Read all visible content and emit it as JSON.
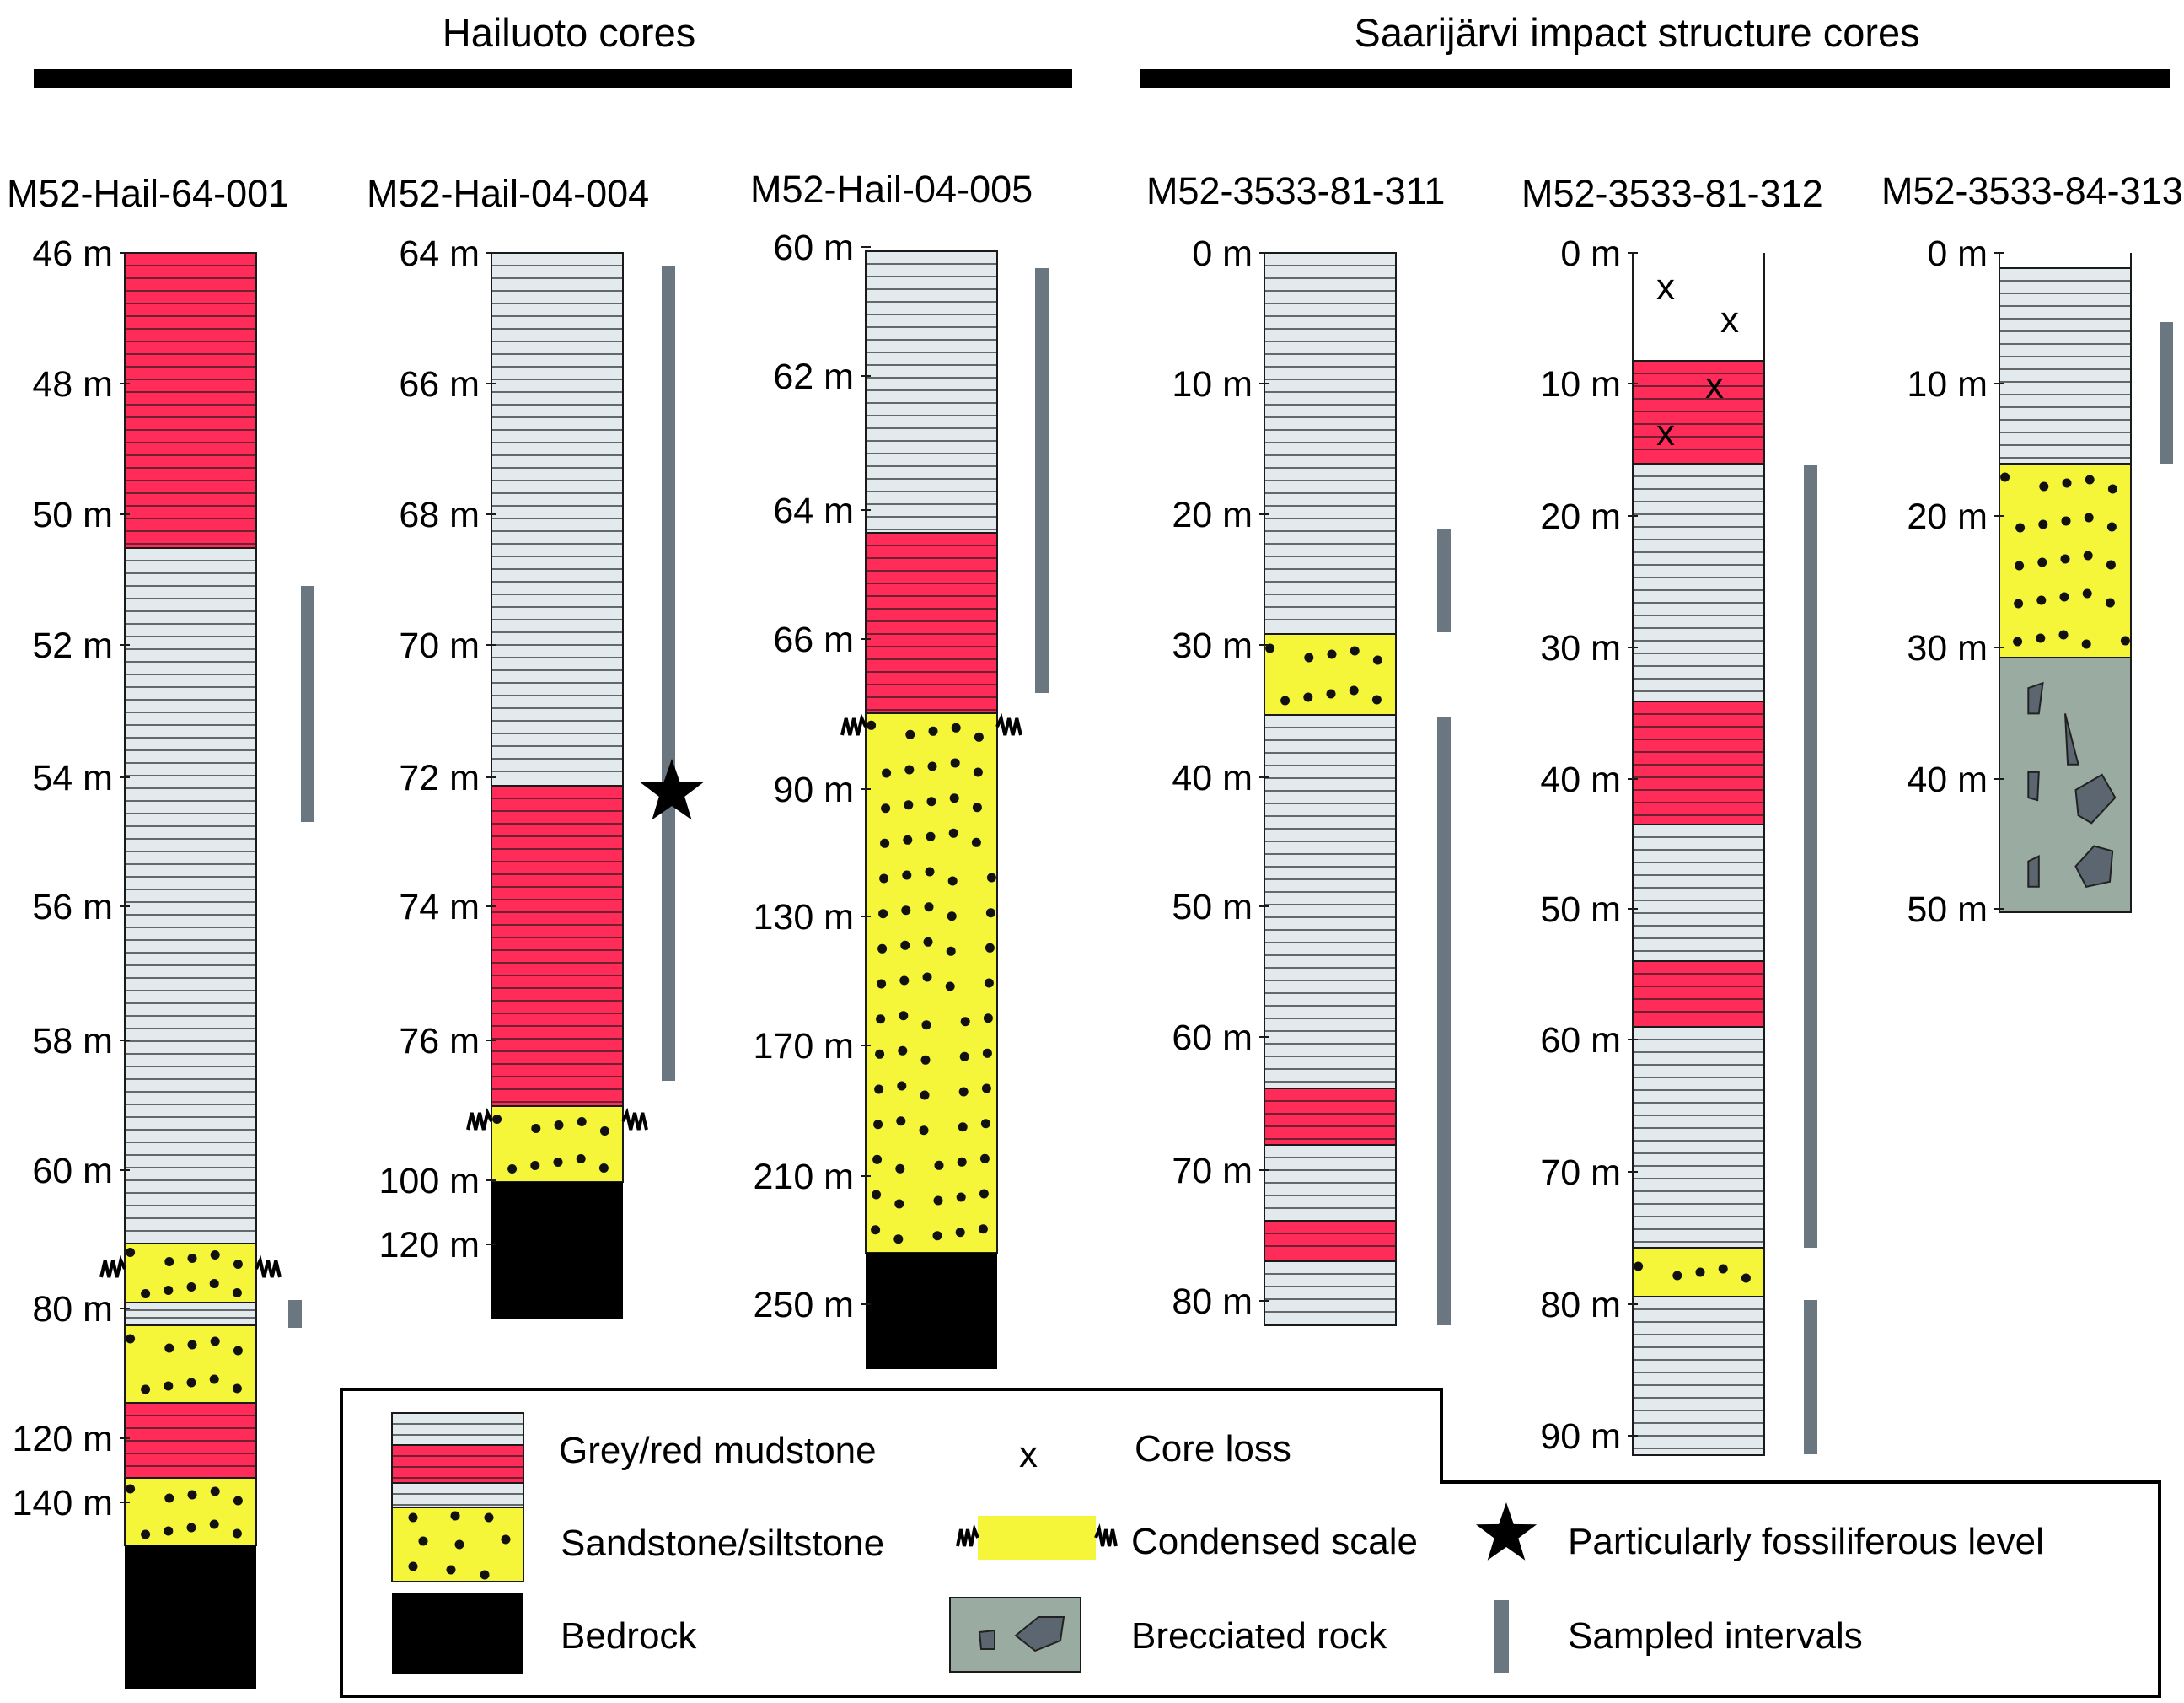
{
  "colors": {
    "mudstone_grey": "#e3eaee",
    "mudstone_red": "#ff2b58",
    "sandstone": "#f5f53a",
    "bedrock": "#000000",
    "breccia": "#9aaba2",
    "clast": "#5c6670",
    "sampled": "#6b7780",
    "line": "#1a1a1a"
  },
  "groups": [
    {
      "label": "Hailuoto cores"
    },
    {
      "label": "Saarijärvi impact structure cores"
    }
  ],
  "cores": [
    {
      "name": "M52-Hail-64-001",
      "ticks": [
        "46 m",
        "48 m",
        "50 m",
        "52 m",
        "54 m",
        "56 m",
        "58 m",
        "60 m",
        "80 m",
        "120 m",
        "140 m"
      ],
      "units": [
        {
          "lithology": "red_mudstone",
          "from": "46 m",
          "to": "50.5 m"
        },
        {
          "lithology": "grey_mudstone",
          "from": "50.5 m",
          "to": "61 m"
        },
        {
          "lithology": "sandstone",
          "from": "61 m",
          "to": "~79 m",
          "condensed": true
        },
        {
          "lithology": "grey_mudstone",
          "from": "~79 m",
          "to": "~82 m"
        },
        {
          "lithology": "sandstone",
          "from": "~82 m",
          "to": "~110 m"
        },
        {
          "lithology": "red_mudstone",
          "from": "~110 m",
          "to": "~128 m"
        },
        {
          "lithology": "sandstone",
          "from": "~128 m",
          "to": "~150 m"
        },
        {
          "lithology": "bedrock",
          "from": "~150 m",
          "to": "base"
        }
      ],
      "sampled_intervals": [
        [
          "51 m",
          "55 m"
        ],
        [
          "~80 m",
          "~82 m"
        ]
      ]
    },
    {
      "name": "M52-Hail-04-004",
      "ticks": [
        "64 m",
        "66 m",
        "68 m",
        "70 m",
        "72 m",
        "74 m",
        "76 m",
        "100 m",
        "120 m"
      ],
      "units": [
        {
          "lithology": "grey_mudstone",
          "from": "64 m",
          "to": "72 m"
        },
        {
          "lithology": "red_mudstone",
          "from": "72 m",
          "to": "77 m"
        },
        {
          "lithology": "sandstone",
          "from": "77 m",
          "to": "100 m",
          "condensed": true
        },
        {
          "lithology": "bedrock",
          "from": "100 m",
          "to": "base"
        }
      ],
      "sampled_intervals": [
        [
          "64 m",
          "77 m"
        ]
      ],
      "fossiliferous_level": "72 m"
    },
    {
      "name": "M52-Hail-04-005",
      "ticks": [
        "60 m",
        "62 m",
        "64 m",
        "66 m",
        "90 m",
        "130 m",
        "170 m",
        "210 m",
        "250 m"
      ],
      "units": [
        {
          "lithology": "grey_mudstone",
          "from": "60 m",
          "to": "64.5 m"
        },
        {
          "lithology": "red_mudstone",
          "from": "64.5 m",
          "to": "67.5 m"
        },
        {
          "lithology": "sandstone",
          "from": "67.5 m",
          "to": "~230 m",
          "condensed": true
        },
        {
          "lithology": "bedrock",
          "from": "~230 m",
          "to": "base"
        }
      ],
      "sampled_intervals": [
        [
          "60 m",
          "67 m"
        ]
      ]
    },
    {
      "name": "M52-3533-81-311",
      "ticks": [
        "0 m",
        "10 m",
        "20 m",
        "30 m",
        "40 m",
        "50 m",
        "60 m",
        "70 m",
        "80 m"
      ],
      "units": [
        {
          "lithology": "grey_mudstone",
          "from": "0 m",
          "to": "29 m"
        },
        {
          "lithology": "sandstone",
          "from": "29 m",
          "to": "35 m"
        },
        {
          "lithology": "grey_mudstone",
          "from": "35 m",
          "to": "64 m"
        },
        {
          "lithology": "red_mudstone",
          "from": "64 m",
          "to": "68.5 m"
        },
        {
          "lithology": "grey_mudstone",
          "from": "68.5 m",
          "to": "74 m"
        },
        {
          "lithology": "red_mudstone",
          "from": "74 m",
          "to": "77 m"
        },
        {
          "lithology": "grey_mudstone",
          "from": "77 m",
          "to": "81.5 m"
        }
      ],
      "sampled_intervals": [
        [
          "21 m",
          "29 m"
        ],
        [
          "35 m",
          "81.5 m"
        ]
      ]
    },
    {
      "name": "M52-3533-81-312",
      "ticks": [
        "0 m",
        "10 m",
        "20 m",
        "30 m",
        "40 m",
        "50 m",
        "60 m",
        "70 m",
        "80 m",
        "90 m"
      ],
      "units": [
        {
          "lithology": "core_loss",
          "from": "0 m",
          "to": "8 m"
        },
        {
          "lithology": "red_mudstone",
          "from": "8 m",
          "to": "16 m"
        },
        {
          "lithology": "grey_mudstone",
          "from": "16 m",
          "to": "34 m"
        },
        {
          "lithology": "red_mudstone",
          "from": "34 m",
          "to": "43.5 m"
        },
        {
          "lithology": "grey_mudstone",
          "from": "43.5 m",
          "to": "54 m"
        },
        {
          "lithology": "red_mudstone",
          "from": "54 m",
          "to": "59 m"
        },
        {
          "lithology": "grey_mudstone",
          "from": "59 m",
          "to": "76 m"
        },
        {
          "lithology": "sandstone",
          "from": "76 m",
          "to": "80 m"
        },
        {
          "lithology": "grey_mudstone",
          "from": "80 m",
          "to": "92 m"
        }
      ],
      "core_loss_marks": [
        "x",
        "x",
        "x",
        "x"
      ],
      "sampled_intervals": [
        [
          "16 m",
          "76 m"
        ],
        [
          "80 m",
          "92 m"
        ]
      ]
    },
    {
      "name": "M52-3533-84-313",
      "ticks": [
        "0 m",
        "10 m",
        "20 m",
        "30 m",
        "40 m",
        "50 m"
      ],
      "units": [
        {
          "lithology": "grey_mudstone",
          "from": "1 m",
          "to": "16 m"
        },
        {
          "lithology": "sandstone",
          "from": "16 m",
          "to": "31 m"
        },
        {
          "lithology": "breccia",
          "from": "31 m",
          "to": "50 m"
        }
      ],
      "sampled_intervals": [
        [
          "5 m",
          "16 m"
        ]
      ]
    }
  ],
  "legend": {
    "items": [
      {
        "key": "grey_red_mudstone",
        "label": "Grey/red mudstone"
      },
      {
        "key": "core_loss",
        "label": "Core loss",
        "symbol": "x"
      },
      {
        "key": "sandstone",
        "label": "Sandstone/siltstone"
      },
      {
        "key": "condensed",
        "label": "Condensed scale"
      },
      {
        "key": "fossil",
        "label": "Particularly fossiliferous level"
      },
      {
        "key": "bedrock",
        "label": "Bedrock"
      },
      {
        "key": "breccia",
        "label": "Brecciated rock"
      },
      {
        "key": "sampled",
        "label": "Sampled intervals"
      }
    ]
  }
}
